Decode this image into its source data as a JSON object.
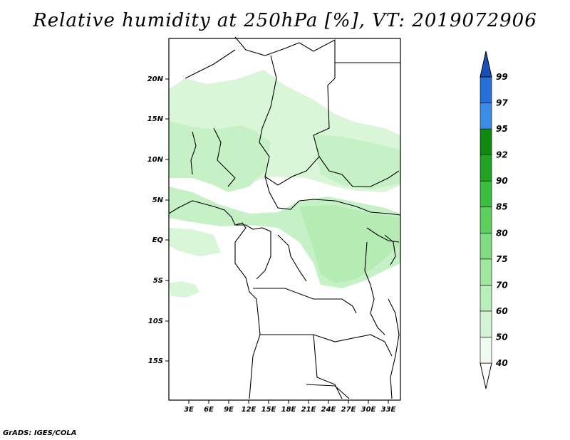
{
  "title": "Relative humidity at 250hPa [%], VT: 2019072906",
  "credit": "GrADS: IGES/COLA",
  "map": {
    "lat_ticks": [
      "20N",
      "15N",
      "10N",
      "5N",
      "EQ",
      "5S",
      "10S",
      "15S"
    ],
    "lon_ticks": [
      "3E",
      "6E",
      "9E",
      "12E",
      "15E",
      "18E",
      "21E",
      "24E",
      "27E",
      "30E",
      "33E"
    ],
    "lon_range": [
      0,
      35
    ],
    "lat_range": [
      -20,
      25
    ]
  },
  "colorbar": {
    "labels": [
      "40",
      "50",
      "60",
      "70",
      "75",
      "80",
      "85",
      "90",
      "92",
      "95",
      "97",
      "99"
    ],
    "colors": [
      "#f0fbf0",
      "#d4f5d4",
      "#b9f0b9",
      "#a0e8a0",
      "#80dc80",
      "#5ccf5c",
      "#3cbd3c",
      "#22a322",
      "#0f8a0f",
      "#3c8ce6",
      "#2670d8",
      "#1650b8"
    ]
  },
  "colors": {
    "humid_light": "#d9f6d9",
    "humid_mid": "#bfeebf",
    "humid_strong": "#a8e6a8",
    "border": "#000000"
  }
}
